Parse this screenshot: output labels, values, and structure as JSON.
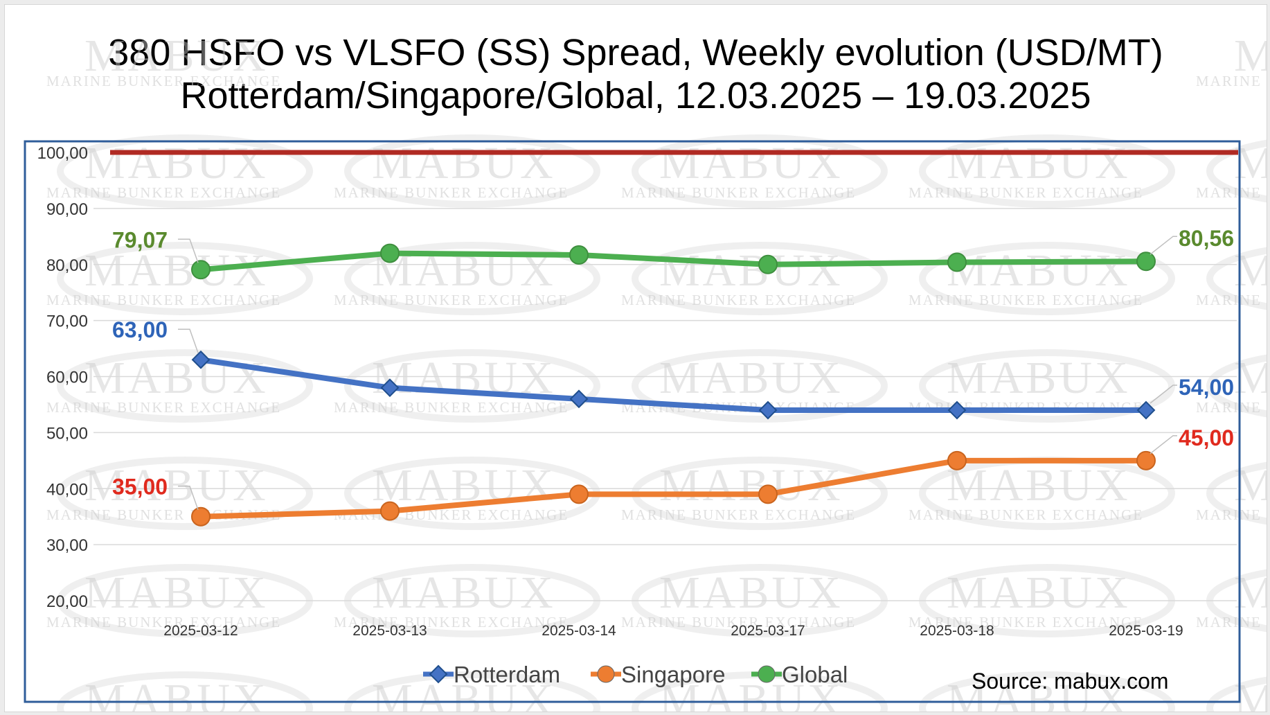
{
  "chart_data": {
    "type": "line",
    "title": "380 HSFO vs VLSFO (SS) Spread, Weekly evolution (USD/MT)",
    "subtitle": "Rotterdam/Singapore/Global, 12.03.2025 – 19.03.2025",
    "categories": [
      "2025-03-12",
      "2025-03-13",
      "2025-03-14",
      "2025-03-17",
      "2025-03-18",
      "2025-03-19"
    ],
    "yticks": [
      "20,00",
      "30,00",
      "40,00",
      "50,00",
      "60,00",
      "70,00",
      "80,00",
      "90,00",
      "100,00"
    ],
    "ylim": [
      20,
      100
    ],
    "reference_line": {
      "value": 100,
      "color": "#b02a23"
    },
    "series": [
      {
        "name": "Rotterdam",
        "color": "#4472c4",
        "marker": "diamond",
        "values": [
          63,
          58,
          56,
          54,
          54,
          54
        ],
        "first_label": "63,00",
        "last_label": "54,00",
        "label_color": "#2e64b8"
      },
      {
        "name": "Singapore",
        "color": "#ed7d31",
        "marker": "circle",
        "values": [
          35,
          36,
          39,
          39,
          45,
          45
        ],
        "first_label": "35,00",
        "last_label": "45,00",
        "label_color": "#e02a1e"
      },
      {
        "name": "Global",
        "color": "#4caf50",
        "marker": "circle",
        "values": [
          79.07,
          82,
          81.7,
          80,
          80.4,
          80.56
        ],
        "first_label": "79,07",
        "last_label": "80,56",
        "label_color": "#5a8a2e"
      }
    ],
    "legend_position": "bottom-center",
    "grid": true
  },
  "watermark": {
    "brand": "MABUX",
    "tagline": "MARINE BUNKER EXCHANGE"
  },
  "source": "Source: mabux.com"
}
